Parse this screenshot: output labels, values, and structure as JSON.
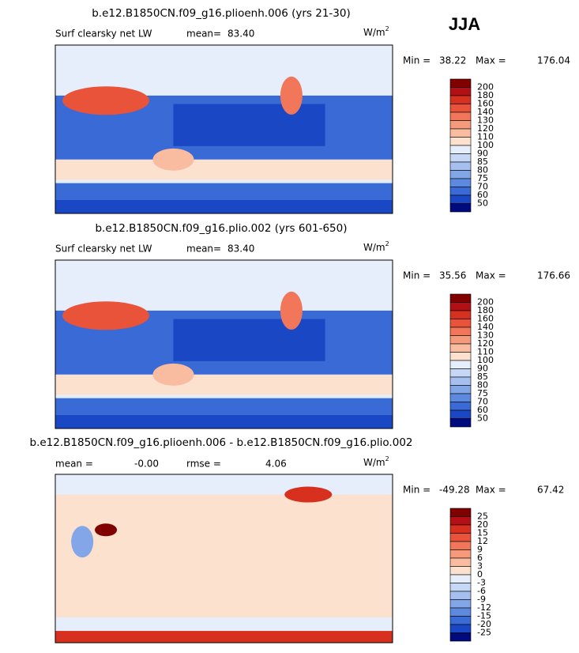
{
  "season": "JJA",
  "panels": [
    {
      "title": "b.e12.B1850CN.f09_g16.plioenh.006 (yrs 21-30)",
      "left_label": "Surf clearsky net LW",
      "stats": [
        {
          "label": "mean=",
          "value": "83.40"
        }
      ],
      "units": "W/m",
      "units_power": "2",
      "min_label": "Min =",
      "min": "38.22",
      "max_label": "Max =",
      "max": "176.04",
      "colorbar": {
        "levels": [
          200,
          180,
          160,
          140,
          130,
          120,
          110,
          100,
          90,
          85,
          80,
          75,
          70,
          60,
          50
        ],
        "colors": [
          "#800000",
          "#b40f14",
          "#d7301f",
          "#e9533a",
          "#f1765a",
          "#f69a7c",
          "#f9bca0",
          "#fde1cf",
          "#e6eefb",
          "#c6d8f5",
          "#a5c0ef",
          "#82a6e8",
          "#5d89df",
          "#3a6ad6",
          "#1a47c4",
          "#000a7d"
        ]
      }
    },
    {
      "title": "b.e12.B1850CN.f09_g16.plio.002 (yrs 601-650)",
      "left_label": "Surf clearsky net LW",
      "stats": [
        {
          "label": "mean=",
          "value": "83.40"
        }
      ],
      "units": "W/m",
      "units_power": "2",
      "min_label": "Min =",
      "min": "35.56",
      "max_label": "Max =",
      "max": "176.66",
      "colorbar": {
        "levels": [
          200,
          180,
          160,
          140,
          130,
          120,
          110,
          100,
          90,
          85,
          80,
          75,
          70,
          60,
          50
        ],
        "colors": [
          "#800000",
          "#b40f14",
          "#d7301f",
          "#e9533a",
          "#f1765a",
          "#f69a7c",
          "#f9bca0",
          "#fde1cf",
          "#e6eefb",
          "#c6d8f5",
          "#a5c0ef",
          "#82a6e8",
          "#5d89df",
          "#3a6ad6",
          "#1a47c4",
          "#000a7d"
        ]
      }
    },
    {
      "title": "b.e12.B1850CN.f09_g16.plioenh.006 - b.e12.B1850CN.f09_g16.plio.002",
      "stats": [
        {
          "label": "mean =",
          "value": "-0.00"
        },
        {
          "label": "rmse =",
          "value": "4.06"
        }
      ],
      "units": "W/m",
      "units_power": "2",
      "min_label": "Min =",
      "min": "-49.28",
      "max_label": "Max =",
      "max": "67.42",
      "colorbar": {
        "levels": [
          25,
          20,
          15,
          12,
          9,
          6,
          3,
          0,
          -3,
          -6,
          -9,
          -12,
          -15,
          -20,
          -25
        ],
        "colors": [
          "#800000",
          "#b40f14",
          "#d7301f",
          "#e9533a",
          "#f1765a",
          "#f69a7c",
          "#f9bca0",
          "#fde1cf",
          "#e6eefb",
          "#c6d8f5",
          "#a5c0ef",
          "#82a6e8",
          "#5d89df",
          "#3a6ad6",
          "#1a47c4",
          "#000a7d"
        ]
      }
    }
  ]
}
